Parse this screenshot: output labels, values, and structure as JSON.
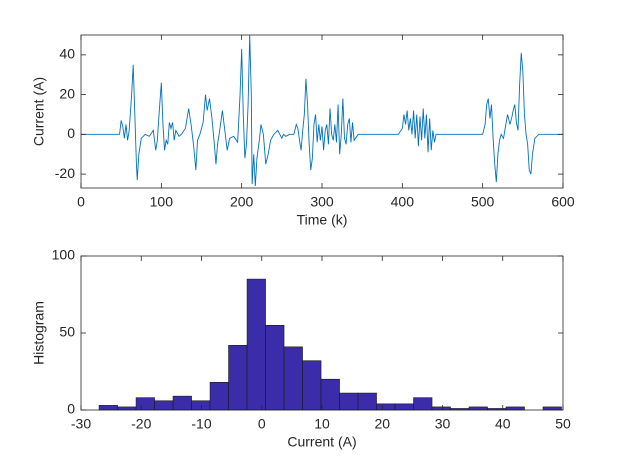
{
  "chart_data": [
    {
      "type": "line",
      "xlabel": "Time (k)",
      "ylabel": "Current (A)",
      "xlim": [
        0,
        600
      ],
      "ylim": [
        -27,
        50
      ],
      "xticks": [
        0,
        100,
        200,
        300,
        400,
        500,
        600
      ],
      "yticks": [
        -20,
        0,
        20,
        40
      ],
      "color": "#0072bd",
      "x": [
        0,
        48,
        50,
        52,
        54,
        56,
        58,
        60,
        63,
        65,
        67,
        69,
        70,
        72,
        75,
        80,
        85,
        90,
        93,
        95,
        98,
        100,
        102,
        104,
        106,
        108,
        110,
        112,
        114,
        116,
        118,
        122,
        125,
        130,
        134,
        137,
        140,
        143,
        145,
        148,
        152,
        155,
        157,
        160,
        163,
        166,
        168,
        170,
        173,
        176,
        179,
        182,
        185,
        190,
        195,
        198,
        200,
        202,
        204,
        206,
        208,
        210,
        212,
        213,
        215,
        217,
        219,
        222,
        224,
        227,
        230,
        233,
        236,
        240,
        245,
        250,
        252,
        255,
        260,
        265,
        268,
        270,
        272,
        274,
        276,
        278,
        280,
        282,
        284,
        286,
        288,
        290,
        292,
        294,
        296,
        298,
        300,
        302,
        304,
        306,
        308,
        310,
        312,
        314,
        316,
        318,
        320,
        322,
        324,
        326,
        328,
        330,
        332,
        334,
        336,
        338,
        340,
        345,
        395,
        400,
        402,
        404,
        406,
        408,
        410,
        412,
        414,
        416,
        418,
        420,
        422,
        424,
        426,
        428,
        430,
        432,
        434,
        436,
        438,
        440,
        442,
        450,
        500,
        503,
        505,
        507,
        509,
        511,
        513,
        515,
        517,
        519,
        521,
        523,
        526,
        528,
        531,
        534,
        536,
        538,
        540,
        542,
        544,
        546,
        548,
        550,
        552,
        554,
        556,
        558,
        560,
        562,
        565,
        570,
        600
      ],
      "values": [
        0,
        0,
        7,
        4,
        -2,
        5,
        -3,
        2,
        20,
        35,
        10,
        -15,
        -23,
        -10,
        -2,
        0,
        -1,
        2,
        -8,
        -3,
        15,
        26,
        5,
        -8,
        -3,
        -5,
        6,
        3,
        6,
        -3,
        2,
        -1,
        0,
        3,
        13,
        5,
        -5,
        -18,
        -3,
        0,
        6,
        20,
        12,
        18,
        8,
        -5,
        -15,
        -5,
        3,
        12,
        2,
        -8,
        -2,
        -1,
        -4,
        20,
        43,
        10,
        -12,
        -5,
        15,
        50,
        20,
        -25,
        -10,
        -26,
        -12,
        -3,
        5,
        0,
        -15,
        -10,
        -3,
        0,
        2,
        -2,
        0,
        -1,
        0,
        0,
        5,
        3,
        -3,
        -8,
        2,
        10,
        28,
        15,
        -5,
        -18,
        -12,
        5,
        10,
        -4,
        5,
        -3,
        4,
        -8,
        2,
        5,
        -5,
        13,
        0,
        -3,
        5,
        -4,
        15,
        -10,
        0,
        18,
        -2,
        -5,
        5,
        8,
        -4,
        6,
        -3,
        0,
        0,
        3,
        10,
        5,
        12,
        2,
        8,
        0,
        12,
        -2,
        10,
        -6,
        9,
        -3,
        13,
        -2,
        10,
        -9,
        8,
        -8,
        2,
        -4,
        0,
        0,
        0,
        5,
        15,
        18,
        8,
        15,
        -2,
        -15,
        -24,
        -10,
        -3,
        0,
        -2,
        3,
        10,
        5,
        8,
        12,
        15,
        6,
        2,
        25,
        41,
        32,
        10,
        0,
        -5,
        -18,
        -20,
        -10,
        -2,
        0,
        0
      ]
    },
    {
      "type": "histogram",
      "xlabel": "Current (A)",
      "ylabel": "Histogram",
      "xlim": [
        -30,
        50
      ],
      "ylim": [
        0,
        100
      ],
      "xticks": [
        -30,
        -20,
        -10,
        0,
        10,
        20,
        30,
        40,
        50
      ],
      "yticks": [
        0,
        50,
        100
      ],
      "color": "#3b2ca9",
      "bins": [
        -27,
        -23.93,
        -20.86,
        -17.79,
        -14.72,
        -11.65,
        -8.58,
        -5.51,
        -2.44,
        0.63,
        3.7,
        6.77,
        9.84,
        12.91,
        15.98,
        19.05,
        22.12,
        25.19,
        28.26,
        31.33,
        34.4,
        37.47,
        40.54,
        43.61,
        46.68,
        49.75
      ],
      "values": [
        3,
        2,
        8,
        6,
        9,
        6,
        18,
        42,
        85,
        55,
        41,
        32,
        20,
        11,
        11,
        4,
        4,
        8,
        2,
        1,
        2,
        1,
        2,
        0,
        2
      ]
    }
  ]
}
